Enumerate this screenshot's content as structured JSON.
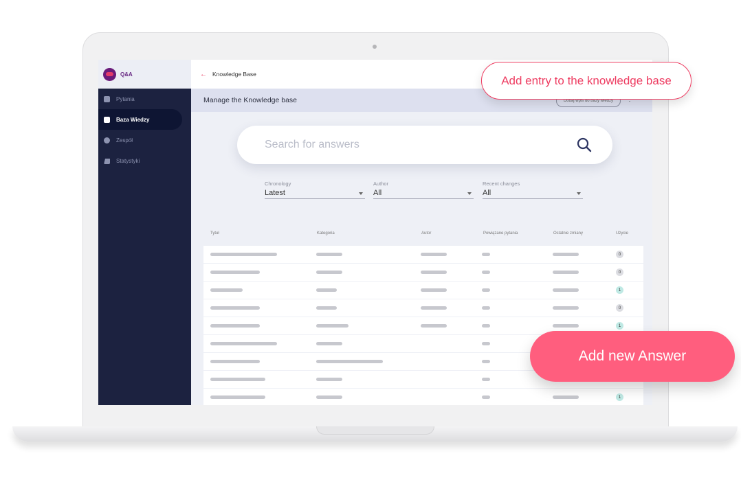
{
  "app": {
    "name": "Q&A"
  },
  "sidebar": {
    "items": [
      {
        "label": "Pytania",
        "icon": "chat-icon",
        "active": false
      },
      {
        "label": "Baza Wiedzy",
        "icon": "book-icon",
        "active": true
      },
      {
        "label": "Zespół",
        "icon": "team-icon",
        "active": false
      },
      {
        "label": "Statystyki",
        "icon": "bar-chart-icon",
        "active": false
      }
    ]
  },
  "topbar": {
    "back_icon": "arrow-left-icon",
    "title": "Knowledge Base"
  },
  "subbar": {
    "title": "Manage the Knowledge base",
    "add_button": "Dodaj wpis do bazy wiedzy"
  },
  "search": {
    "placeholder": "Search for answers"
  },
  "filters": [
    {
      "label": "Chronology",
      "value": "Latest"
    },
    {
      "label": "Author",
      "value": "All"
    },
    {
      "label": "Recent changes",
      "value": "All"
    }
  ],
  "table": {
    "columns": [
      "Tytuł",
      "Kategoria",
      "Autor",
      "Powiązane pytania",
      "Ostatnie zmiany",
      "Użycie"
    ],
    "usage": [
      0,
      0,
      1,
      0,
      1,
      null,
      null,
      null,
      1
    ]
  },
  "callouts": {
    "add_entry": "Add entry to the knowledge base",
    "add_answer": "Add new Answer"
  },
  "colors": {
    "accent": "#ee3d62",
    "button": "#ff5e7e",
    "sidebar": "#1c2240",
    "badge_zero": "#dcdde2",
    "badge_one": "#bfe9e4"
  }
}
